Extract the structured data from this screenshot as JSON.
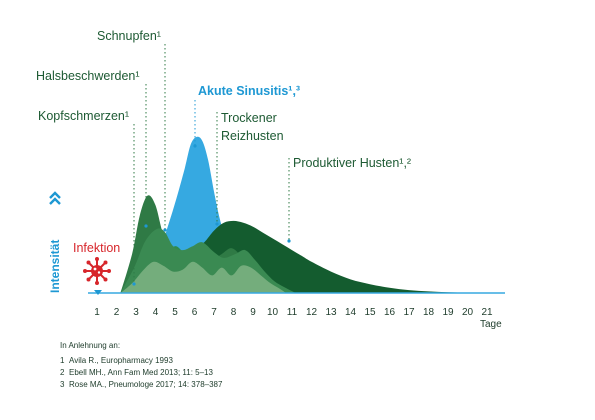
{
  "chart_data": {
    "type": "area",
    "ylabel": "Intensität",
    "xlabel": "Tage",
    "x_ticks": [
      "1",
      "2",
      "3",
      "4",
      "5",
      "6",
      "7",
      "8",
      "9",
      "10",
      "11",
      "12",
      "13",
      "14",
      "15",
      "16",
      "17",
      "18",
      "19",
      "20",
      "21"
    ],
    "xlim": [
      1,
      21
    ],
    "grid": false,
    "colors": {
      "sinusitis": "#36a9e1",
      "kopfschmerzen": "#7fb384",
      "halsbeschwerden": "#3a8a52",
      "schnupfen": "#2f7a45",
      "reizhusten": "#2e8b4f",
      "produktiver_husten": "#145c2f",
      "infektion": "#d7262b",
      "axis": "#36a9e1"
    },
    "series": [
      {
        "name": "Kopfschmerzen¹",
        "x": [
          2.2,
          2.8,
          3.4,
          3.9,
          4.4,
          4.9,
          5.4,
          5.9,
          6.4,
          6.9,
          7.4,
          7.9,
          8.4,
          8.9,
          9.4,
          9.9,
          10.4,
          10.7
        ],
        "y": [
          0,
          5,
          12,
          16,
          14,
          11,
          12,
          16,
          13,
          9,
          13,
          9,
          14,
          13,
          9,
          5,
          2,
          0
        ]
      },
      {
        "name": "Halsbeschwerden¹",
        "x": [
          2.2,
          2.9,
          3.5,
          4.1,
          4.5,
          4.9,
          5.4,
          5.9,
          6.4,
          7.0,
          7.5,
          8.1,
          8.6,
          9.1,
          9.6,
          10.1,
          10.6,
          11.2
        ],
        "y": [
          0,
          13,
          27,
          33,
          31,
          24,
          22,
          24,
          26,
          21,
          18,
          20,
          22,
          17,
          11,
          6,
          3,
          0
        ]
      },
      {
        "name": "Schnupfen¹",
        "x": [
          2.2,
          2.8,
          3.2,
          3.6,
          4.0,
          4.4,
          4.9,
          5.4,
          5.9,
          6.4,
          6.9,
          7.4,
          7.9,
          8.4,
          8.9,
          9.4,
          9.9,
          10.5,
          11.0
        ],
        "y": [
          0,
          20,
          40,
          50,
          45,
          30,
          22,
          21,
          20,
          18,
          17,
          20,
          23,
          19,
          14,
          8,
          4,
          1,
          0
        ]
      },
      {
        "name": "Akute Sinusitis¹·³",
        "x": [
          3.5,
          4.0,
          4.5,
          5.0,
          5.5,
          5.8,
          6.1,
          6.4,
          6.7,
          7.0,
          7.3,
          7.6,
          8.0,
          8.5,
          9.0,
          9.5,
          10.0,
          10.5,
          11.0
        ],
        "y": [
          0,
          14,
          30,
          46,
          64,
          76,
          80,
          78,
          68,
          52,
          38,
          28,
          22,
          16,
          11,
          7,
          4,
          1,
          0
        ]
      },
      {
        "name": "Trockener Reizhusten",
        "x": [
          3.8,
          4.5,
          5.0,
          5.5,
          6.0,
          6.5,
          7.0,
          7.5,
          8.0,
          8.5,
          9.0,
          9.5,
          10.0,
          10.5,
          11.0,
          11.5,
          12.0,
          12.5
        ],
        "y": [
          0,
          18,
          24,
          20,
          16,
          18,
          22,
          27,
          28,
          30,
          29,
          24,
          19,
          13,
          8,
          4,
          2,
          0
        ]
      },
      {
        "name": "Produktiver Husten¹·²",
        "x": [
          5.5,
          6.0,
          6.5,
          7.0,
          7.5,
          8.0,
          8.5,
          9.0,
          9.5,
          10.0,
          10.5,
          11.0,
          11.5,
          12.0,
          13.0,
          14.0,
          15.0,
          16.0,
          17.0,
          18.0,
          19.0,
          20.0,
          21.0
        ],
        "y": [
          0,
          22,
          26,
          32,
          36,
          37,
          36,
          34,
          31,
          28,
          25,
          22,
          19,
          16,
          11,
          7,
          4.5,
          2.7,
          1.5,
          0.8,
          0.4,
          0.15,
          0
        ]
      }
    ],
    "annotations": [
      {
        "text": "Schnupfen¹",
        "x": 4.7
      },
      {
        "text": "Halsbeschwerden¹",
        "x": 3.7
      },
      {
        "text": "Akute Sinusitis¹,³",
        "x": 6.1
      },
      {
        "text": "Kopfschmerzen¹",
        "x": 3.1
      },
      {
        "text": "Trockener",
        "text2": "Reizhusten",
        "x": 7.3
      },
      {
        "text": "Produktiver Husten¹,²",
        "x": 10.9
      },
      {
        "text": "Infektion",
        "x": 1.1
      }
    ]
  },
  "footnotes": {
    "intro": "In Anlehnung an:",
    "refs": [
      {
        "num": "1",
        "text": "Avila R., Europharmacy 1993"
      },
      {
        "num": "2",
        "text": "Ebell MH., Ann Fam Med 2013; 11: 5–13"
      },
      {
        "num": "3",
        "text": "Rose MA., Pneumologe 2017; 14: 378–387"
      }
    ]
  }
}
